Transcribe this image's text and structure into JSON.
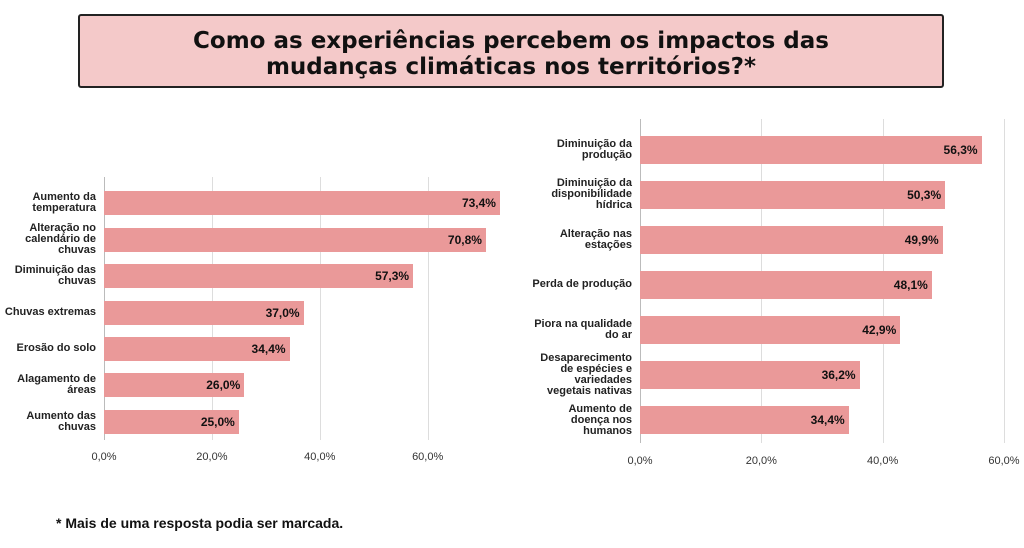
{
  "title": "Como as experiências percebem os impactos das mudanças climáticas nos territórios?*",
  "footnote": "* Mais de uma resposta podia ser marcada.",
  "chart_data": [
    {
      "type": "bar",
      "orientation": "horizontal",
      "color": "#ea9999",
      "grid": true,
      "categories": [
        "Aumento da temperatura",
        "Alteração no calendário de chuvas",
        "Diminuição das chuvas",
        "Chuvas extremas",
        "Erosão do solo",
        "Alagamento de áreas",
        "Aumento das chuvas"
      ],
      "values": [
        73.4,
        70.8,
        57.3,
        37.0,
        34.4,
        26.0,
        25.0
      ],
      "value_labels": [
        "73,4%",
        "70,8%",
        "57,3%",
        "37,0%",
        "34,4%",
        "26,0%",
        "25,0%"
      ],
      "xlim": [
        0,
        76
      ],
      "xticks": [
        {
          "value": 0,
          "label": "0,0%"
        },
        {
          "value": 20,
          "label": "20,0%"
        },
        {
          "value": 40,
          "label": "40,0%"
        },
        {
          "value": 60,
          "label": "60,0%"
        }
      ]
    },
    {
      "type": "bar",
      "orientation": "horizontal",
      "color": "#ea9999",
      "grid": true,
      "categories": [
        "Diminuição da produção",
        "Diminuição da disponibilidade hídrica",
        "Alteração nas estações",
        "Perda de produção",
        "Piora na qualidade do ar",
        "Desaparecimento de espécies e variedades vegetais nativas",
        "Aumento de doença nos humanos"
      ],
      "values": [
        56.3,
        50.3,
        49.9,
        48.1,
        42.9,
        36.2,
        34.4
      ],
      "value_labels": [
        "56,3%",
        "50,3%",
        "49,9%",
        "48,1%",
        "42,9%",
        "36,2%",
        "34,4%"
      ],
      "xlim": [
        0,
        60
      ],
      "xticks": [
        {
          "value": 0,
          "label": "0,0%"
        },
        {
          "value": 20,
          "label": "20,0%"
        },
        {
          "value": 40,
          "label": "40,0%"
        },
        {
          "value": 60,
          "label": "60,0%"
        }
      ]
    }
  ]
}
